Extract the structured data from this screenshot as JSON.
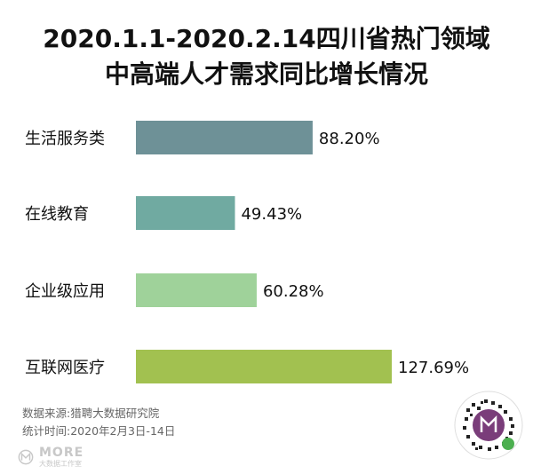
{
  "title": {
    "line1": "2020.1.1-2020.2.14四川省热门领域",
    "line2": "中高端人才需求同比增长情况"
  },
  "chart_data": {
    "type": "bar",
    "orientation": "horizontal",
    "categories": [
      "生活服务类",
      "在线教育",
      "企业级应用",
      "互联网医疗"
    ],
    "values": [
      88.2,
      49.43,
      60.28,
      127.69
    ],
    "value_labels": [
      "88.20%",
      "49.43%",
      "60.28%",
      "127.69%"
    ],
    "colors": [
      "#6e9197",
      "#70aaa1",
      "#9fd29a",
      "#a2c150"
    ],
    "xlim": [
      0,
      127.69
    ],
    "grid": false,
    "legend": "none"
  },
  "source": {
    "line1": "数据来源:猎聘大数据研究院",
    "line2": "统计时间:2020年2月3日-14日"
  },
  "brand": {
    "name": "MORE",
    "sub": "大数据工作室",
    "color": "#c8c8c8"
  },
  "qr": {
    "icon": "qr-code-icon",
    "center_icon": "more-logo-icon"
  }
}
